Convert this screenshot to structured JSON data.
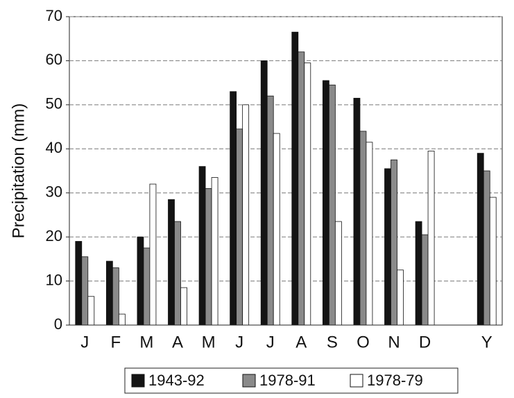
{
  "chart_data": {
    "type": "bar",
    "y_label": "Precipitation (mm)",
    "categories": [
      "J",
      "F",
      "M",
      "A",
      "M",
      "J",
      "J",
      "A",
      "S",
      "O",
      "N",
      "D",
      null,
      "Y"
    ],
    "series": [
      {
        "name": "1943-92",
        "color": "#141414",
        "values": [
          19,
          14.5,
          20,
          28.5,
          36,
          53,
          60,
          66.5,
          55.5,
          51.5,
          35.5,
          23.5,
          null,
          39
        ]
      },
      {
        "name": "1978-91",
        "color": "#8a8a8a",
        "values": [
          15.5,
          13,
          17.5,
          23.5,
          31,
          44.5,
          52,
          62,
          54.5,
          44,
          37.5,
          20.5,
          null,
          35
        ]
      },
      {
        "name": "1978-79",
        "color": "#ffffff",
        "values": [
          6.5,
          2.5,
          32,
          8.5,
          33.5,
          50,
          43.5,
          59.5,
          23.5,
          41.5,
          12.5,
          39.5,
          null,
          29
        ]
      }
    ],
    "ylim": [
      0,
      70
    ],
    "yticks": [
      0,
      10,
      20,
      30,
      40,
      50,
      60,
      70
    ],
    "grid": true
  }
}
